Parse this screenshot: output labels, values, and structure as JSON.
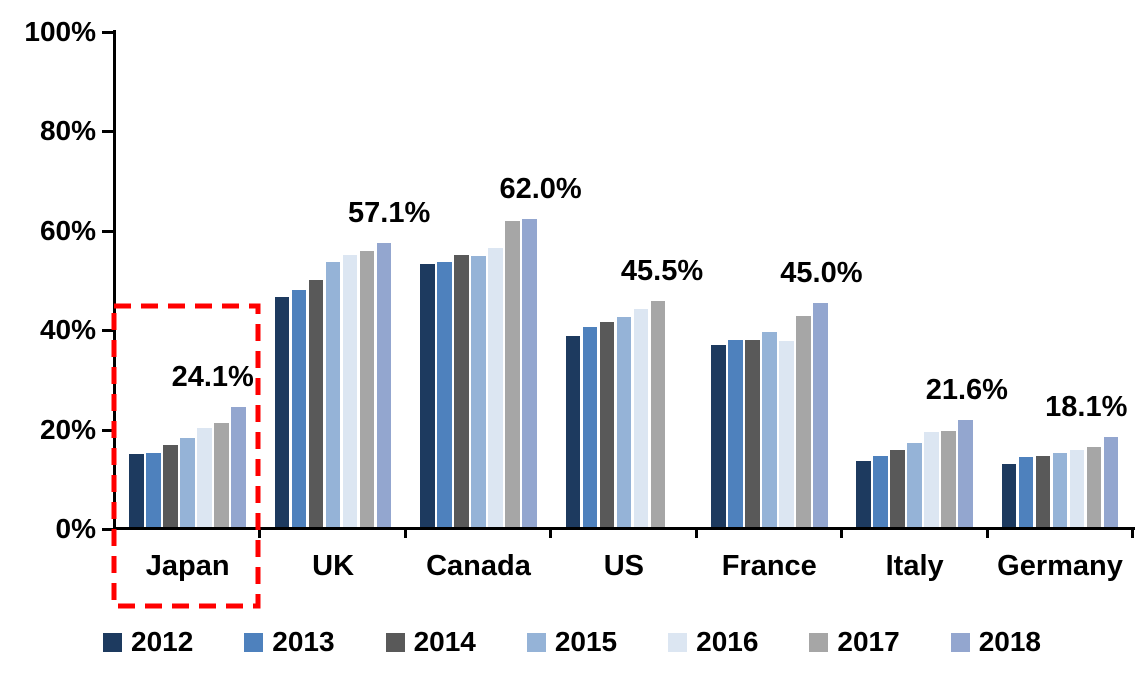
{
  "chart_data": {
    "type": "bar",
    "title": "",
    "xlabel": "",
    "ylabel": "",
    "ylim": [
      0,
      100
    ],
    "grid": false,
    "legend_position": "bottom",
    "y_tick_labels": [
      "100%",
      "80%",
      "60%",
      "40%",
      "20%",
      "0%"
    ],
    "categories": [
      "Japan",
      "UK",
      "Canada",
      "US",
      "France",
      "Italy",
      "Germany"
    ],
    "series": [
      {
        "name": "2012",
        "color": "#1D3A5F",
        "values": [
          14.6,
          46.3,
          52.9,
          38.5,
          36.6,
          13.3,
          12.6
        ]
      },
      {
        "name": "2013",
        "color": "#4E81BD",
        "values": [
          14.9,
          47.7,
          53.3,
          40.3,
          37.6,
          14.3,
          14.0
        ]
      },
      {
        "name": "2014",
        "color": "#595959",
        "values": [
          16.5,
          49.8,
          54.7,
          41.2,
          37.7,
          15.4,
          14.3
        ]
      },
      {
        "name": "2015",
        "color": "#95B3D7",
        "values": [
          17.9,
          53.3,
          54.5,
          42.3,
          39.2,
          17.0,
          14.8
        ]
      },
      {
        "name": "2016",
        "color": "#DCE6F2",
        "values": [
          19.9,
          54.7,
          56.1,
          43.8,
          37.4,
          19.2,
          15.4
        ]
      },
      {
        "name": "2017",
        "color": "#A6A6A6",
        "values": [
          21.0,
          55.6,
          61.5,
          45.5,
          42.4,
          19.3,
          16.0
        ]
      },
      {
        "name": "2018",
        "color": "#93A6CF",
        "values": [
          24.1,
          57.1,
          62.0,
          null,
          45.0,
          21.6,
          18.1
        ]
      }
    ],
    "data_labels": [
      "24.1%",
      "57.1%",
      "62.0%",
      "45.5%",
      "45.0%",
      "21.6%",
      "18.1%"
    ],
    "legend": [
      "2012",
      "2013",
      "2014",
      "2015",
      "2016",
      "2017",
      "2018"
    ],
    "annotations": {
      "highlight_box": {
        "category": "Japan",
        "style": "dashed",
        "color": "#FF0000"
      }
    }
  },
  "colors": {
    "axis": "#000000",
    "text": "#000000",
    "background": "#FFFFFF",
    "highlight": "#FF0000"
  }
}
